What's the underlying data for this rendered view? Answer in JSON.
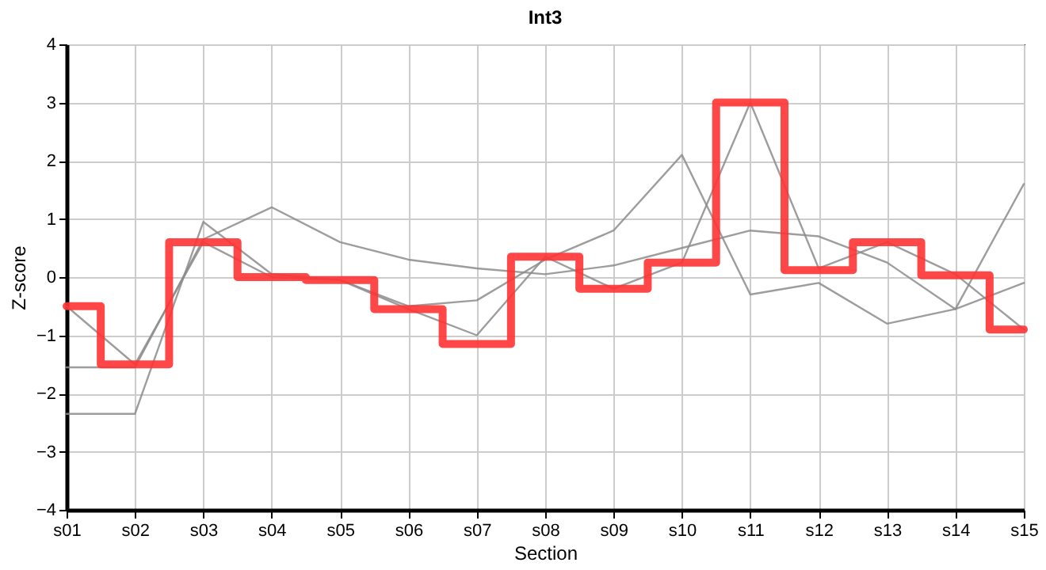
{
  "chart_data": {
    "type": "line",
    "title": "Int3",
    "xlabel": "Section",
    "ylabel": "Z-score",
    "categories": [
      "s01",
      "s02",
      "s03",
      "s04",
      "s05",
      "s06",
      "s07",
      "s08",
      "s09",
      "s10",
      "s11",
      "s12",
      "s13",
      "s14",
      "s15"
    ],
    "ylim": [
      -4,
      4
    ],
    "yticks": [
      -4,
      -3,
      -2,
      -1,
      0,
      1,
      2,
      3,
      4
    ],
    "grid": true,
    "series": [
      {
        "color": "#8c8c8c",
        "values": [
          -1.55,
          -1.55,
          0.65,
          1.2,
          0.6,
          0.3,
          0.15,
          0.05,
          0.2,
          0.5,
          0.8,
          0.7,
          0.25,
          -0.55,
          -0.1
        ]
      },
      {
        "color": "#8c8c8c",
        "values": [
          -2.35,
          -2.35,
          0.95,
          0.05,
          -0.05,
          -0.5,
          -0.4,
          0.3,
          0.8,
          2.1,
          -0.3,
          -0.1,
          -0.8,
          -0.55,
          1.6
        ]
      },
      {
        "color": "#8c8c8c",
        "values": [
          -0.5,
          -1.5,
          0.6,
          0.0,
          -0.05,
          -0.55,
          -1.0,
          0.35,
          -0.2,
          0.25,
          3.0,
          0.15,
          0.6,
          0.05,
          -0.9
        ]
      },
      {
        "type": "step",
        "color": "#ff3333",
        "values": [
          -0.5,
          -1.5,
          0.6,
          0.0,
          -0.05,
          -0.55,
          -1.15,
          0.35,
          -0.2,
          0.25,
          3.0,
          0.12,
          0.6,
          0.03,
          -0.9
        ]
      }
    ]
  }
}
